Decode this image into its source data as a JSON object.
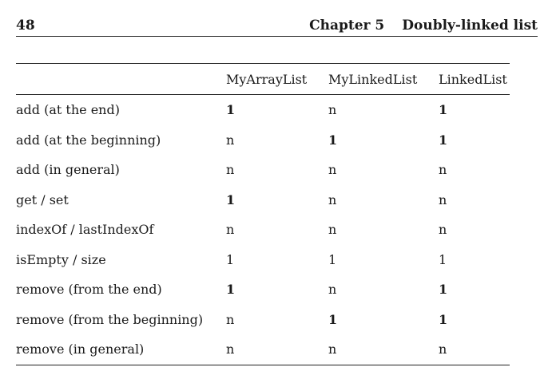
{
  "header": {
    "page_number": "48",
    "chapter_label": "Chapter 5",
    "chapter_title": "Doubly-linked list"
  },
  "table": {
    "columns": [
      "",
      "MyArrayList",
      "MyLinkedList",
      "LinkedList"
    ],
    "rows": [
      {
        "op": "add (at the end)",
        "cells": [
          {
            "v": "1",
            "bold": true
          },
          {
            "v": "n",
            "bold": false
          },
          {
            "v": "1",
            "bold": true
          }
        ]
      },
      {
        "op": "add (at the beginning)",
        "cells": [
          {
            "v": "n",
            "bold": false
          },
          {
            "v": "1",
            "bold": true
          },
          {
            "v": "1",
            "bold": true
          }
        ]
      },
      {
        "op": "add (in general)",
        "cells": [
          {
            "v": "n",
            "bold": false
          },
          {
            "v": "n",
            "bold": false
          },
          {
            "v": "n",
            "bold": false
          }
        ]
      },
      {
        "op": "get / set",
        "cells": [
          {
            "v": "1",
            "bold": true
          },
          {
            "v": "n",
            "bold": false
          },
          {
            "v": "n",
            "bold": false
          }
        ]
      },
      {
        "op": "indexOf / lastIndexOf",
        "cells": [
          {
            "v": "n",
            "bold": false
          },
          {
            "v": "n",
            "bold": false
          },
          {
            "v": "n",
            "bold": false
          }
        ]
      },
      {
        "op": "isEmpty / size",
        "cells": [
          {
            "v": "1",
            "bold": false
          },
          {
            "v": "1",
            "bold": false
          },
          {
            "v": "1",
            "bold": false
          }
        ]
      },
      {
        "op": "remove (from the end)",
        "cells": [
          {
            "v": "1",
            "bold": true
          },
          {
            "v": "n",
            "bold": false
          },
          {
            "v": "1",
            "bold": true
          }
        ]
      },
      {
        "op": "remove (from the beginning)",
        "cells": [
          {
            "v": "n",
            "bold": false
          },
          {
            "v": "1",
            "bold": true
          },
          {
            "v": "1",
            "bold": true
          }
        ]
      },
      {
        "op": "remove (in general)",
        "cells": [
          {
            "v": "n",
            "bold": false
          },
          {
            "v": "n",
            "bold": false
          },
          {
            "v": "n",
            "bold": false
          }
        ]
      }
    ]
  }
}
